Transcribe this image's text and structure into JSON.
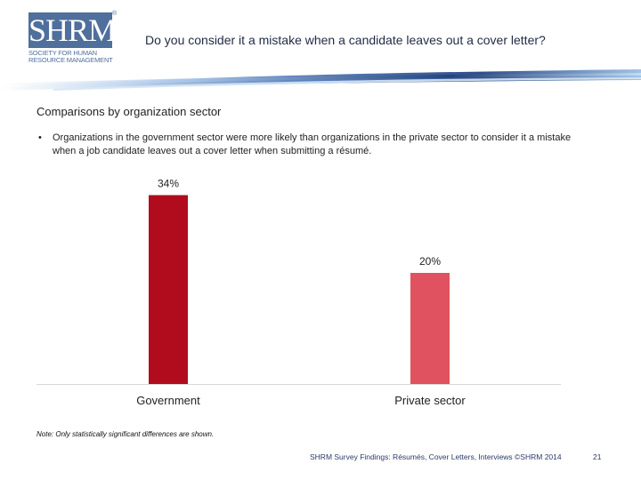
{
  "logo": {
    "mark": "SHRM",
    "registered": "®",
    "line1": "SOCIETY FOR HUMAN",
    "line2": "RESOURCE MANAGEMENT"
  },
  "header": {
    "title": "Do you consider it a mistake when a candidate leaves out a cover letter?"
  },
  "section": {
    "title": "Comparisons by organization sector",
    "bullet_symbol": "•",
    "bullet": "Organizations in the government sector were more likely than organizations in the private sector to consider it a mistake when a job candidate leaves out a cover letter when submitting a résumé."
  },
  "chart_data": {
    "type": "bar",
    "title": "",
    "categories": [
      "Government",
      "Private sector"
    ],
    "values": [
      34,
      20
    ],
    "data_labels": [
      "34%",
      "20%"
    ],
    "colors": [
      "#b00c1e",
      "#e0525f"
    ],
    "xlabel": "",
    "ylabel": "",
    "ylim": [
      0,
      40
    ],
    "grid": false,
    "legend": "none"
  },
  "note": "Note: Only statistically significant differences are shown.",
  "footer": {
    "text": "SHRM Survey Findings: Résumés, Cover Letters, Interviews ©SHRM 2014",
    "page": "21"
  },
  "colors": {
    "brand": "#4f6f9c",
    "banner_dark": "#2e4f8a",
    "banner_light": "#9fc3e6",
    "axis": "#d9d9d9"
  }
}
